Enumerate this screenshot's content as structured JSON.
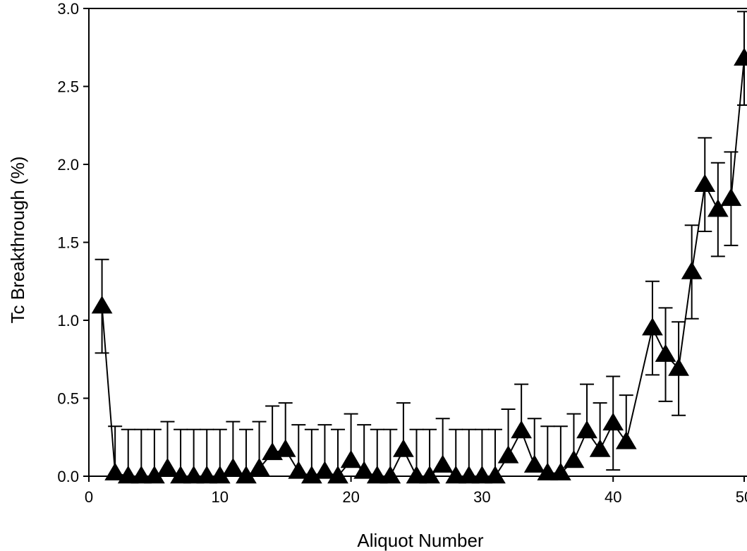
{
  "chart_data": {
    "type": "line",
    "title": "",
    "xlabel": "Aliquot Number",
    "ylabel": "Tc Breakthrough (%)",
    "xlim": [
      0,
      50
    ],
    "ylim": [
      0,
      3.0
    ],
    "x_ticks": [
      "0",
      "10",
      "20",
      "30",
      "40",
      "50"
    ],
    "y_ticks": [
      "0.0",
      "0.5",
      "1.0",
      "1.5",
      "2.0",
      "2.5",
      "3.0"
    ],
    "marker": "filled-triangle",
    "color": "#000000",
    "series": [
      {
        "x": [
          1,
          2,
          3,
          4,
          5,
          6,
          7,
          8,
          9,
          10,
          11,
          12,
          13,
          14,
          15,
          16,
          17,
          18,
          19,
          20,
          21,
          22,
          23,
          24,
          25,
          26,
          27,
          28,
          29,
          30,
          31,
          32,
          33,
          34,
          35,
          36,
          37,
          38,
          39,
          40,
          41,
          43,
          44,
          45,
          46,
          47,
          48,
          49,
          50
        ],
        "values": [
          1.09,
          0.02,
          0.0,
          0.0,
          0.0,
          0.05,
          0.0,
          0.0,
          0.0,
          0.0,
          0.05,
          0.0,
          0.05,
          0.15,
          0.17,
          0.03,
          0.0,
          0.03,
          0.0,
          0.1,
          0.03,
          0.0,
          0.0,
          0.17,
          0.0,
          0.0,
          0.07,
          0.0,
          0.0,
          0.0,
          0.0,
          0.13,
          0.29,
          0.07,
          0.02,
          0.02,
          0.1,
          0.29,
          0.17,
          0.34,
          0.22,
          0.95,
          0.78,
          0.69,
          1.31,
          1.87,
          1.71,
          1.78,
          2.68
        ],
        "error": [
          0.3,
          0.3,
          0.3,
          0.3,
          0.3,
          0.3,
          0.3,
          0.3,
          0.3,
          0.3,
          0.3,
          0.3,
          0.3,
          0.3,
          0.3,
          0.3,
          0.3,
          0.3,
          0.3,
          0.3,
          0.3,
          0.3,
          0.3,
          0.3,
          0.3,
          0.3,
          0.3,
          0.3,
          0.3,
          0.3,
          0.3,
          0.3,
          0.3,
          0.3,
          0.3,
          0.3,
          0.3,
          0.3,
          0.3,
          0.3,
          0.3,
          0.3,
          0.3,
          0.3,
          0.3,
          0.3,
          0.3,
          0.3,
          0.3
        ]
      }
    ]
  }
}
